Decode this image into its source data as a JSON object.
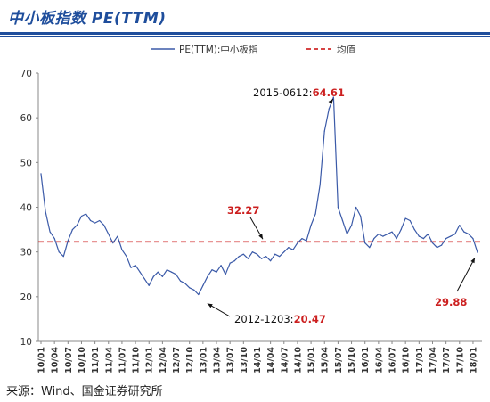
{
  "header": {
    "title": "中小板指数 PE(TTM)"
  },
  "footer": {
    "source": "来源：Wind、国金证券研究所"
  },
  "colors": {
    "line": "#3b5aa8",
    "mean": "#d02a2a",
    "annotation_red": "#cc1f1f",
    "title": "#1f4e9c"
  },
  "chart_data": {
    "type": "line",
    "title": "",
    "xlabel": "",
    "ylabel": "",
    "ylim": [
      10,
      70
    ],
    "yticks": [
      10,
      20,
      30,
      40,
      50,
      60,
      70
    ],
    "xtick_labels": [
      "10/01",
      "10/04",
      "10/07",
      "10/10",
      "11/01",
      "11/04",
      "11/07",
      "11/10",
      "12/01",
      "12/04",
      "12/07",
      "12/10",
      "13/01",
      "13/04",
      "13/07",
      "13/10",
      "14/01",
      "14/04",
      "14/07",
      "14/10",
      "15/01",
      "15/04",
      "15/07",
      "15/10",
      "16/01",
      "16/04",
      "16/07",
      "16/10",
      "17/01",
      "17/04",
      "17/07",
      "17/10",
      "18/01"
    ],
    "legend": {
      "placement": "top",
      "series_label": "PE(TTM):中小板指",
      "mean_label": "均值"
    },
    "series": [
      {
        "name": "PE(TTM):中小板指",
        "x": [
          "10/01",
          "10/02",
          "10/03",
          "10/04",
          "10/05",
          "10/06",
          "10/07",
          "10/08",
          "10/09",
          "10/10",
          "10/11",
          "10/12",
          "11/01",
          "11/02",
          "11/03",
          "11/04",
          "11/05",
          "11/06",
          "11/07",
          "11/08",
          "11/09",
          "11/10",
          "11/11",
          "11/12",
          "12/01",
          "12/02",
          "12/03",
          "12/04",
          "12/05",
          "12/06",
          "12/07",
          "12/08",
          "12/09",
          "12/10",
          "12/11",
          "12/12",
          "13/01",
          "13/02",
          "13/03",
          "13/04",
          "13/05",
          "13/06",
          "13/07",
          "13/08",
          "13/09",
          "13/10",
          "13/11",
          "13/12",
          "14/01",
          "14/02",
          "14/03",
          "14/04",
          "14/05",
          "14/06",
          "14/07",
          "14/08",
          "14/09",
          "14/10",
          "14/11",
          "14/12",
          "15/01",
          "15/02",
          "15/03",
          "15/04",
          "15/05",
          "15/06",
          "15/07",
          "15/08",
          "15/09",
          "15/10",
          "15/11",
          "15/12",
          "16/01",
          "16/02",
          "16/03",
          "16/04",
          "16/05",
          "16/06",
          "16/07",
          "16/08",
          "16/09",
          "16/10",
          "16/11",
          "16/12",
          "17/01",
          "17/02",
          "17/03",
          "17/04",
          "17/05",
          "17/06",
          "17/07",
          "17/08",
          "17/09",
          "17/10",
          "17/11",
          "17/12",
          "18/01",
          "18/02"
        ],
        "values": [
          47.5,
          39,
          34.5,
          33,
          30,
          29,
          32.5,
          35,
          36,
          38,
          38.5,
          37,
          36.5,
          37,
          36,
          34,
          32,
          33.5,
          30.5,
          29,
          26.5,
          27,
          25.5,
          24,
          22.5,
          24.5,
          25.5,
          24.5,
          26,
          25.5,
          25,
          23.5,
          23,
          22,
          21.5,
          20.47,
          22.5,
          24.5,
          26,
          25.5,
          27,
          25,
          27.5,
          28,
          29,
          29.5,
          28.5,
          30,
          29.5,
          28.5,
          29,
          28,
          29.5,
          29,
          30,
          31,
          30.5,
          32,
          33,
          32.5,
          36,
          38.5,
          45,
          57,
          62,
          64.61,
          40,
          37,
          34,
          36,
          40,
          38,
          32,
          31,
          33,
          34,
          33.5,
          34,
          34.5,
          33,
          35,
          37.5,
          37,
          35,
          33.5,
          33,
          34,
          32,
          31,
          31.5,
          33,
          33.5,
          34,
          36,
          34.5,
          34,
          33,
          29.88
        ]
      }
    ],
    "mean_line": {
      "value": 32.27,
      "label": "均值"
    },
    "annotations": [
      {
        "text": "2015-0612:",
        "value_text": "64.61",
        "x": "15/06",
        "y": 64.61
      },
      {
        "text": "",
        "value_text": "32.27",
        "x": "14/04",
        "y": 32.27
      },
      {
        "text": "2012-1203:",
        "value_text": "20.47",
        "x": "12/12",
        "y": 20.47
      },
      {
        "text": "",
        "value_text": "29.88",
        "x": "18/02",
        "y": 29.88
      }
    ]
  }
}
